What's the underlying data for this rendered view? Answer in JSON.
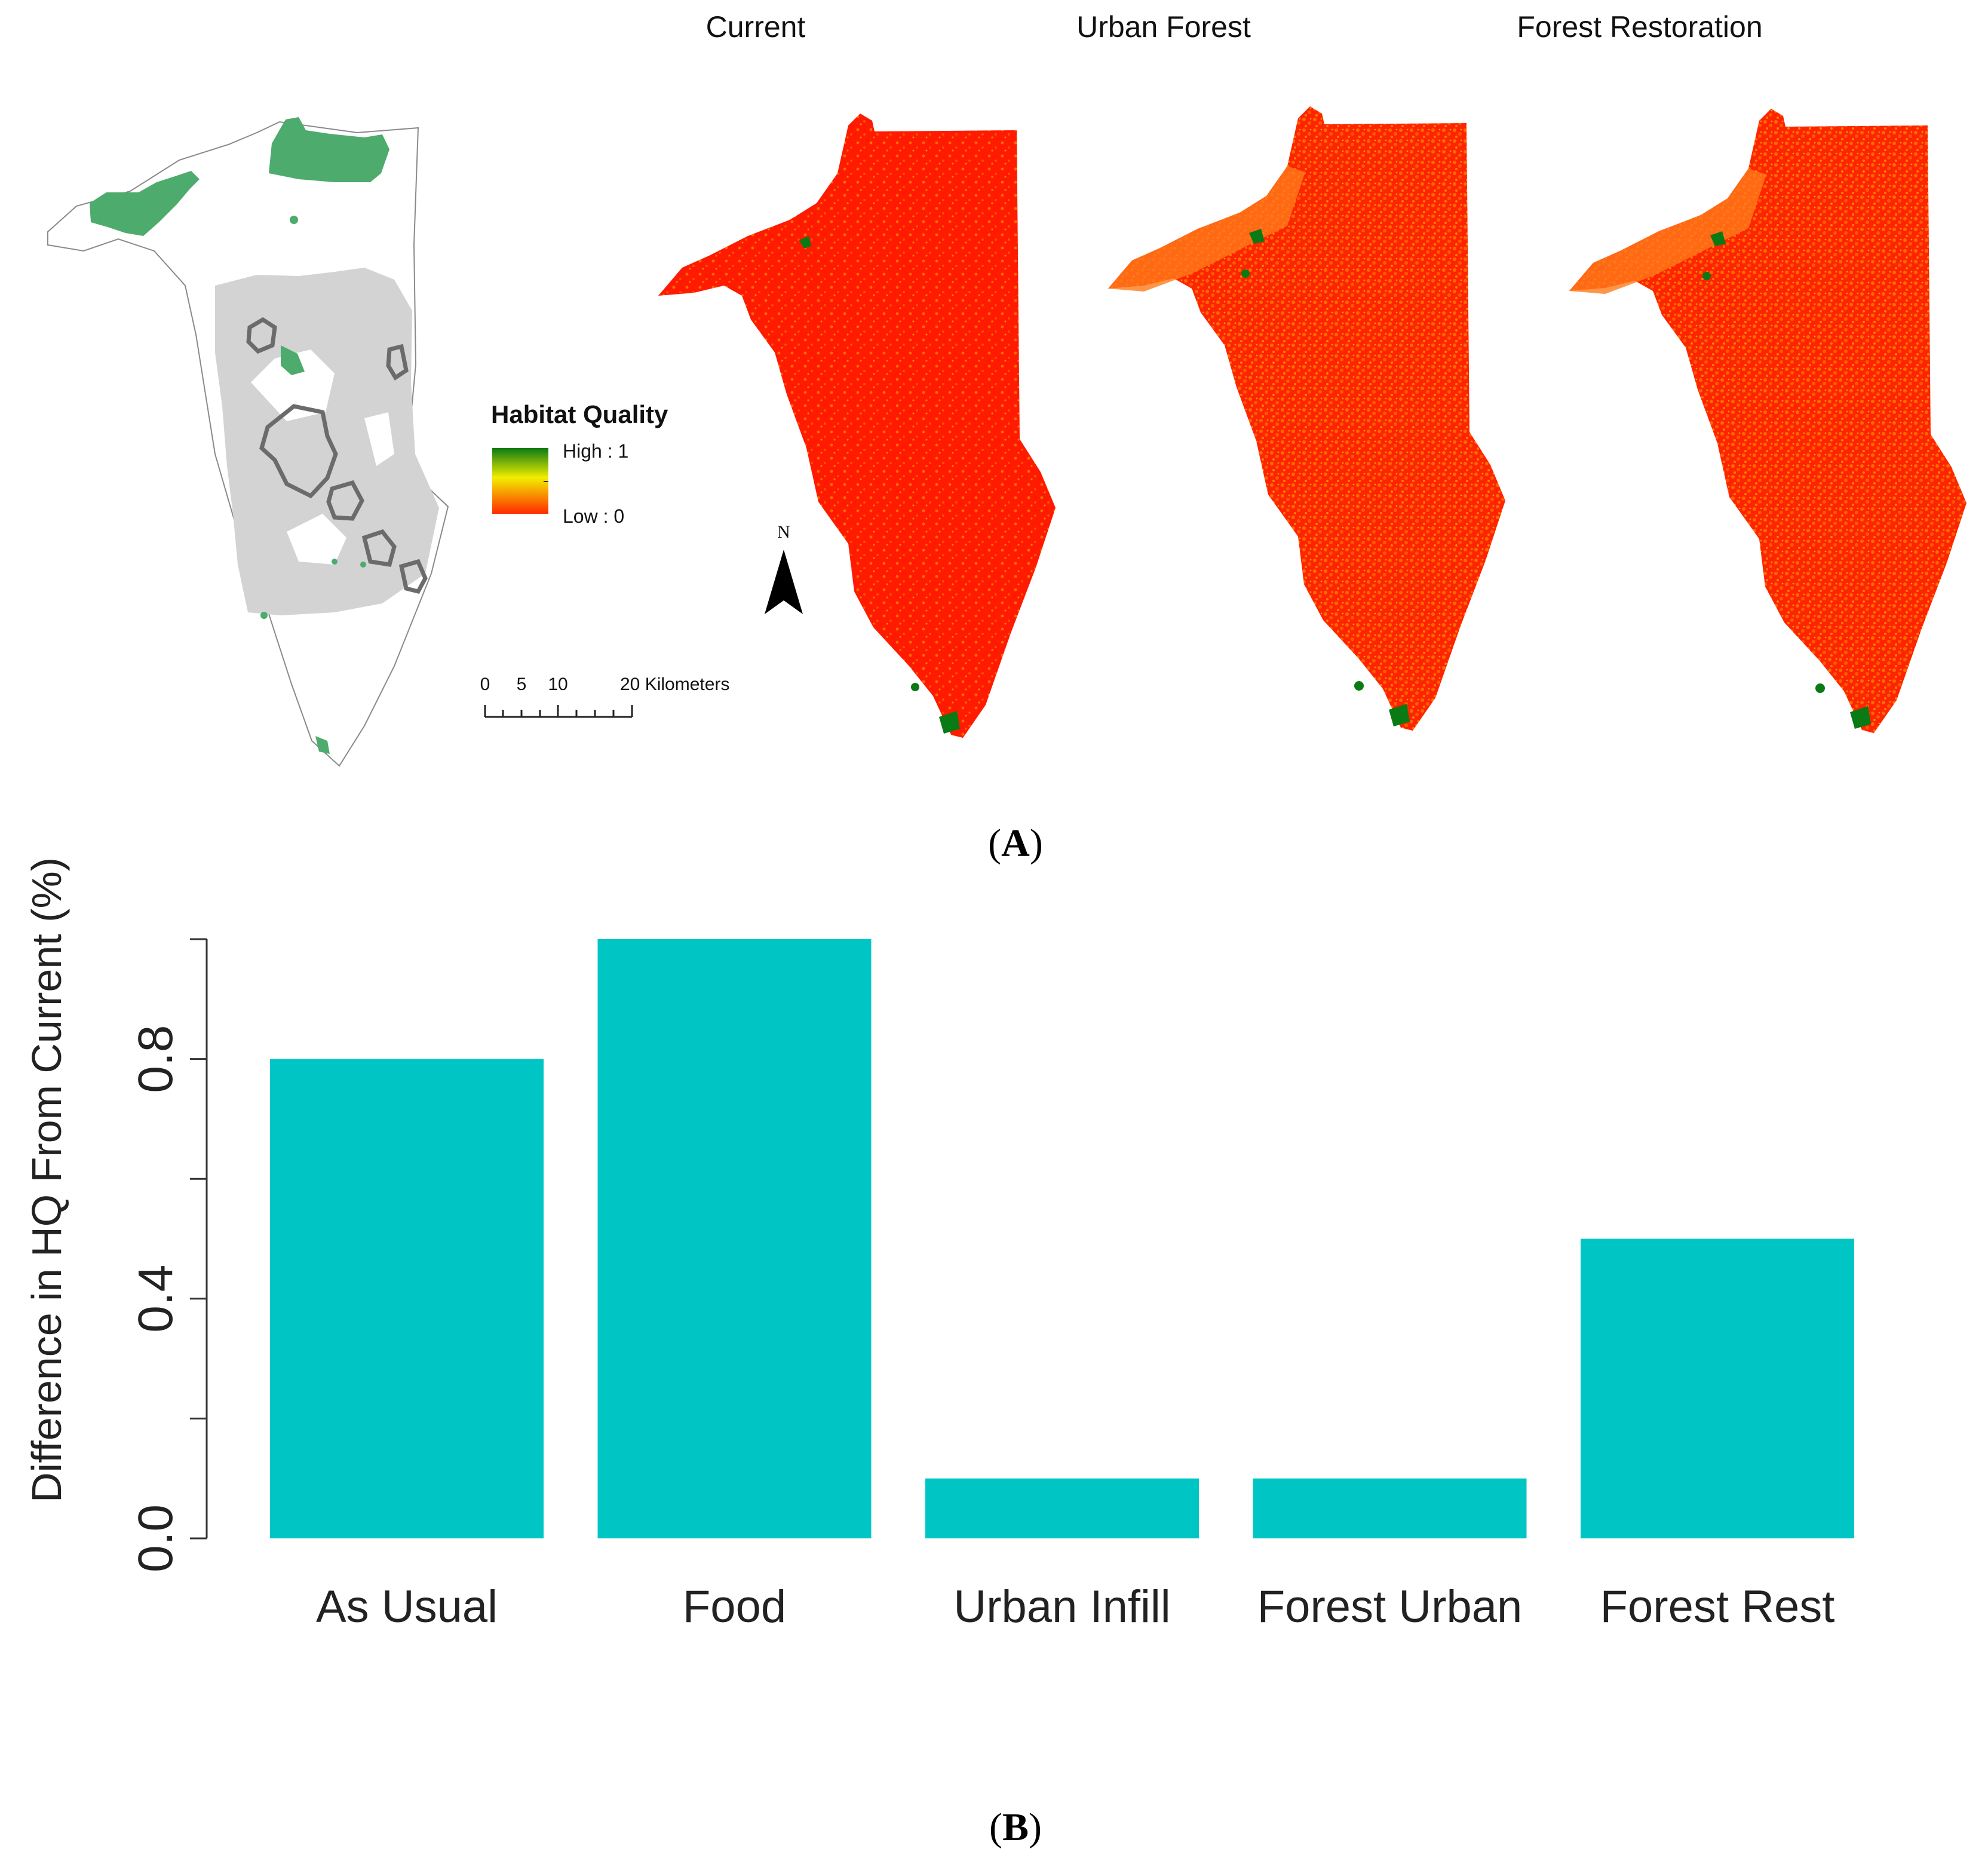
{
  "panel_a": {
    "map_titles": [
      "Current",
      "Urban Forest",
      "Forest Restoration"
    ],
    "legend": {
      "title": "Habitat Quality",
      "high_label": "High : 1",
      "low_label": "Low : 0",
      "high_color": "#0a7a14",
      "mid_color": "#f2ee00",
      "low_color": "#ff2a00"
    },
    "north_label": "N",
    "scale_bar": {
      "tick_labels": [
        "0",
        "5",
        "10"
      ],
      "end_label": "20 Kilometers"
    },
    "colors": {
      "green_patch": "#4dab6d",
      "urban_gray": "#d3d3d3",
      "map_red": "#ff1a00",
      "map_orange": "#ff5a00",
      "outline": "#888888"
    },
    "label": "A"
  },
  "chart_data": {
    "type": "bar",
    "categories": [
      "As Usual",
      "Food",
      "Urban Infill",
      "Forest Urban",
      "Forest Rest"
    ],
    "values": [
      0.8,
      1.0,
      0.1,
      0.1,
      0.5
    ],
    "title": "",
    "xlabel": "",
    "ylabel": "Difference in HQ From Current (%)",
    "ylim": [
      0,
      1.0
    ],
    "yticks": [
      0.0,
      0.2,
      0.4,
      0.6,
      0.8,
      1.0
    ],
    "ytick_labels": [
      "0.0",
      "",
      "0.4",
      "",
      "0.8",
      ""
    ],
    "bar_color": "#00c5c5",
    "grid": false
  },
  "panel_b": {
    "label": "B"
  }
}
